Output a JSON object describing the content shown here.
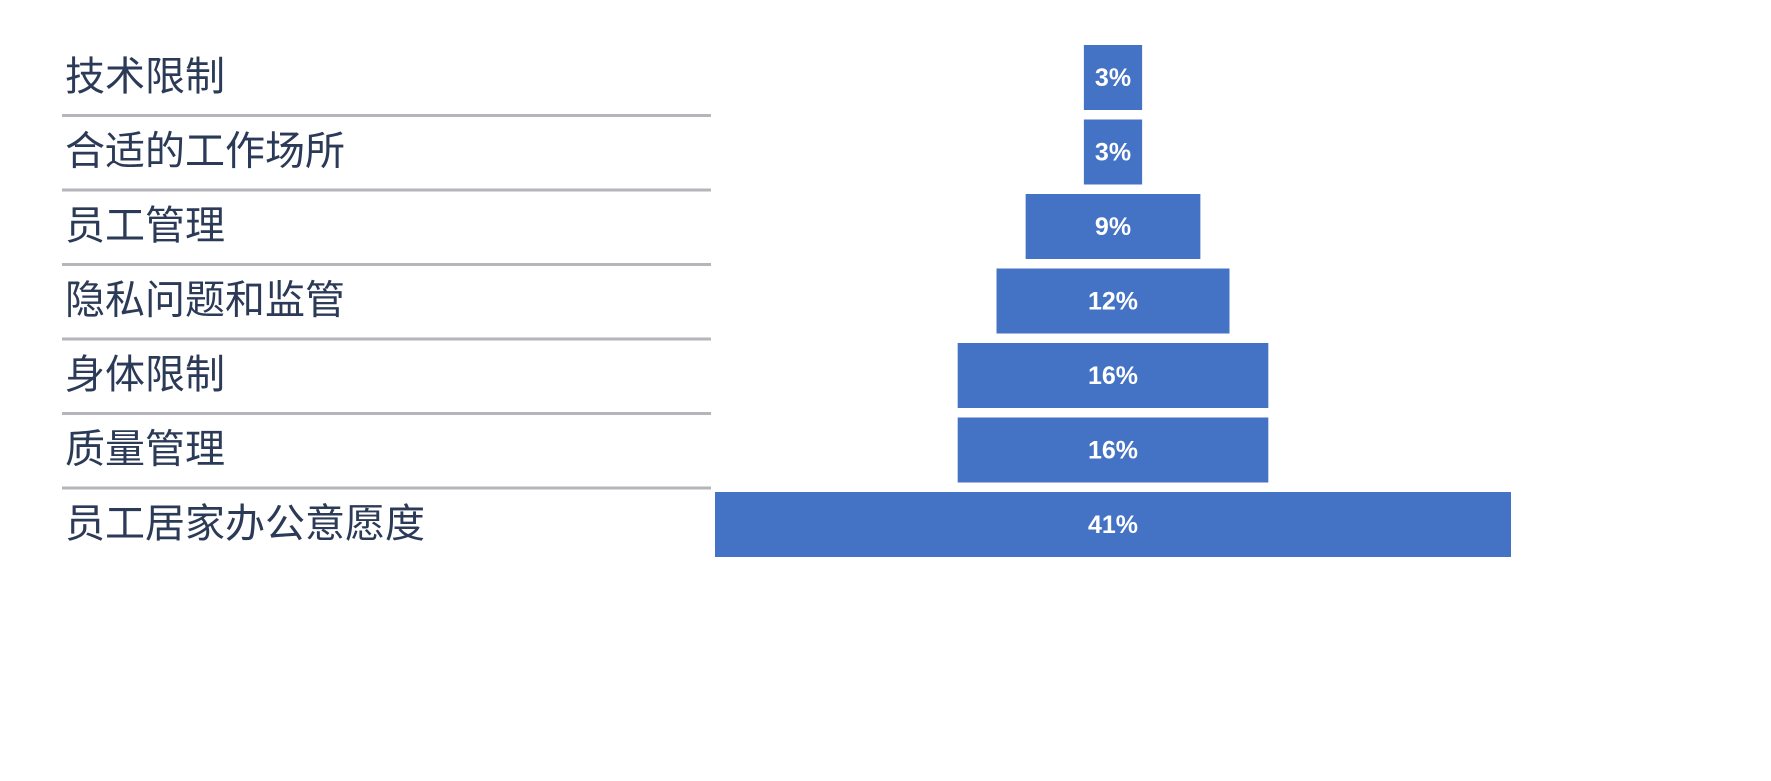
{
  "chart_data": {
    "type": "funnel",
    "categories": [
      "技术限制",
      "合适的工作场所",
      "员工管理",
      "隐私问题和监管",
      "身体限制",
      "质量管理",
      "员工居家办公意愿度"
    ],
    "values": [
      3,
      3,
      9,
      12,
      16,
      16,
      41
    ],
    "value_labels": [
      "3%",
      "3%",
      "9%",
      "12%",
      "16%",
      "16%",
      "41%"
    ],
    "color": "#4472c4"
  }
}
